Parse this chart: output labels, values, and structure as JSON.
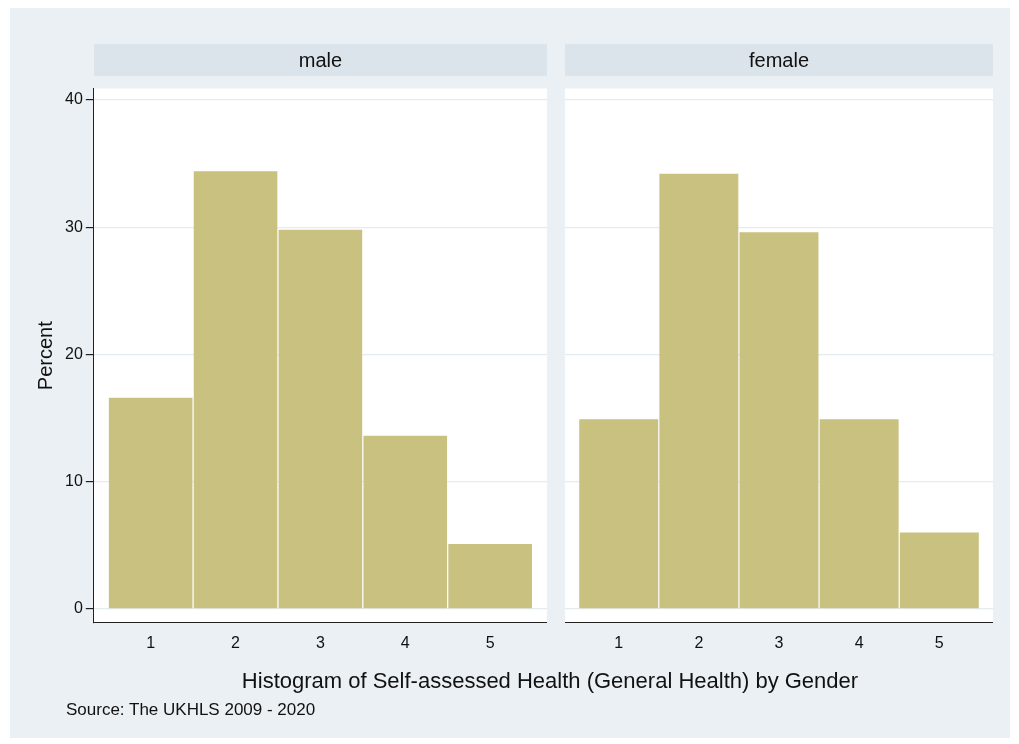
{
  "chart_data": [
    {
      "type": "histogram",
      "title": "male",
      "xlabel": "Histogram of Self-assessed Health (General Health) by Gender",
      "ylabel": "Percent",
      "annotations": [
        "Source: The UKHLS 2009 - 2020"
      ],
      "bins": [
        0.5,
        1.5,
        2.5,
        3.5,
        4.5,
        5.5
      ],
      "values": [
        16.6,
        34.4,
        29.8,
        13.6,
        5.1
      ],
      "color": "#c9c17f",
      "xlim": [
        0.33,
        5.67
      ],
      "xticks": [
        1,
        2,
        3,
        4,
        5
      ],
      "ylim": [
        -1.1,
        40.9
      ],
      "yticks": [
        0,
        10,
        20,
        30,
        40
      ],
      "grid": "y"
    },
    {
      "type": "histogram",
      "title": "female",
      "bins": [
        0.5,
        1.5,
        2.5,
        3.5,
        4.5,
        5.5
      ],
      "values": [
        14.9,
        34.2,
        29.6,
        14.9,
        6.0
      ],
      "color": "#c9c17f",
      "xlim": [
        0.33,
        5.67
      ],
      "xticks": [
        1,
        2,
        3,
        4,
        5
      ],
      "ylim": [
        -1.1,
        40.9
      ],
      "yticks": [
        0,
        10,
        20,
        30,
        40
      ],
      "grid": "y",
      "tick_labels": "x"
    }
  ]
}
